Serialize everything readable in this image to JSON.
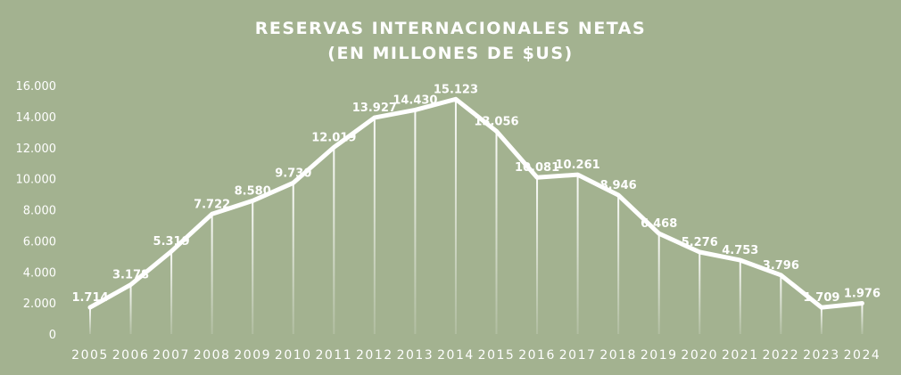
{
  "chart_data": {
    "type": "line",
    "title": "RESERVAS INTERNACIONALES NETAS",
    "subtitle": "(EN MILLONES DE $US)",
    "categories": [
      "2005",
      "2006",
      "2007",
      "2008",
      "2009",
      "2010",
      "2011",
      "2012",
      "2013",
      "2014",
      "2015",
      "2016",
      "2017",
      "2018",
      "2019",
      "2020",
      "2021",
      "2022",
      "2023",
      "2024"
    ],
    "series": [
      {
        "values": [
          1714,
          3178,
          5319,
          7722,
          8580,
          9730,
          12019,
          13927,
          14430,
          15123,
          13056,
          10081,
          10261,
          8946,
          6468,
          5276,
          4753,
          3796,
          1709,
          1976
        ],
        "labels": [
          "1.714",
          "3.178",
          "5.319",
          "7.722",
          "8.580",
          "9.730",
          "12.019",
          "13.927",
          "14.430",
          "15.123",
          "13.056",
          "10.081",
          "10.261",
          "8.946",
          "6.468",
          "5.276",
          "4.753",
          "3.796",
          "1.709",
          "1.976"
        ]
      }
    ],
    "yticks": [
      0,
      2000,
      4000,
      6000,
      8000,
      10000,
      12000,
      14000,
      16000
    ],
    "ytick_labels": [
      "0",
      "2.000",
      "4.000",
      "6.000",
      "8.000",
      "10.000",
      "12.000",
      "14.000",
      "16.000"
    ],
    "ylim": [
      0,
      16000
    ],
    "grid": false,
    "drop_lines": true,
    "colors": {
      "background": "#a3b290",
      "line": "#ffffff",
      "text": "#ffffff"
    }
  }
}
